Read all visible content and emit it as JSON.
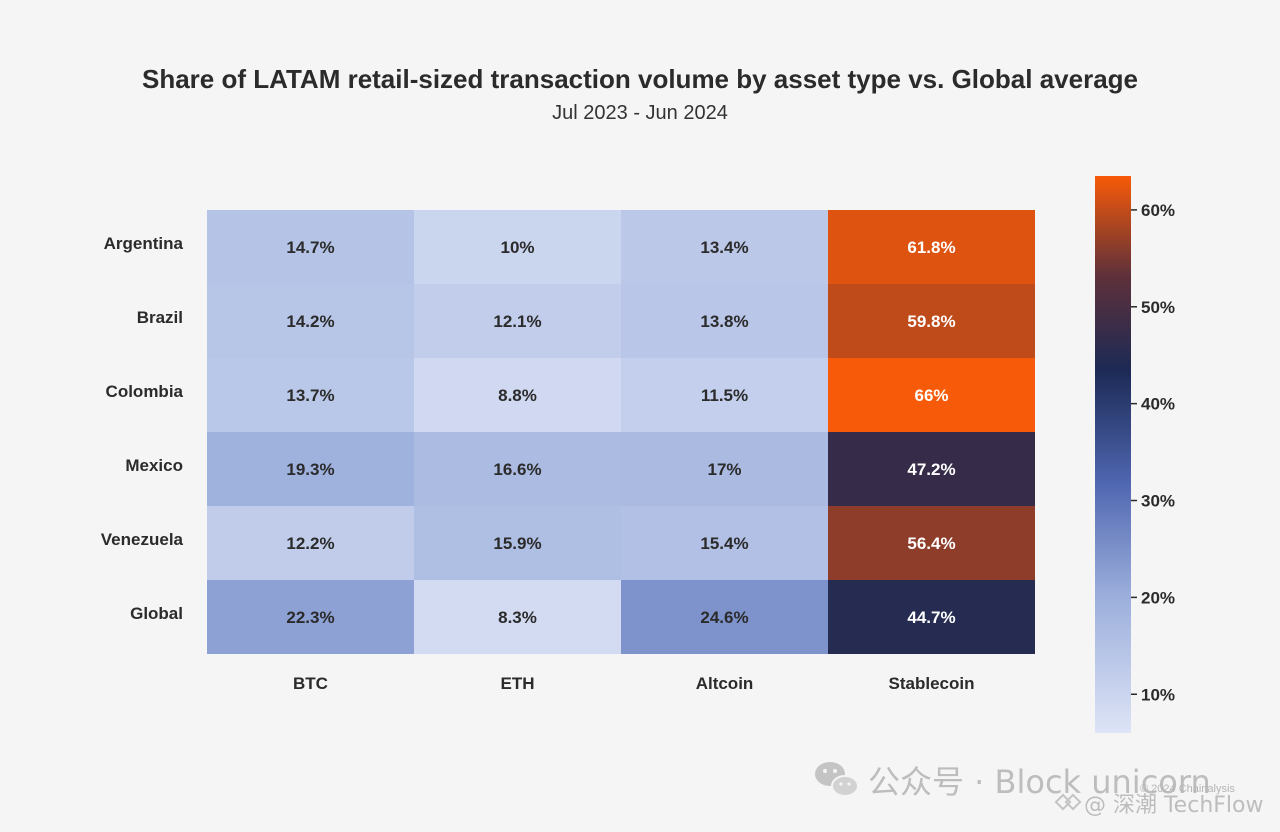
{
  "chart_data": {
    "type": "heatmap",
    "title": "Share of LATAM retail-sized transaction volume by asset type vs. Global average",
    "subtitle": "Jul 2023 - Jun 2024",
    "xlabel": "",
    "ylabel": "",
    "rows": [
      "Argentina",
      "Brazil",
      "Colombia",
      "Mexico",
      "Venezuela",
      "Global"
    ],
    "columns": [
      "BTC",
      "ETH",
      "Altcoin",
      "Stablecoin"
    ],
    "values": [
      [
        14.7,
        10,
        13.4,
        61.8
      ],
      [
        14.2,
        12.1,
        13.8,
        59.8
      ],
      [
        13.7,
        8.8,
        11.5,
        66
      ],
      [
        19.3,
        16.6,
        17,
        47.2
      ],
      [
        12.2,
        15.9,
        15.4,
        56.4
      ],
      [
        22.3,
        8.3,
        24.6,
        44.7
      ]
    ],
    "cell_labels": [
      [
        "14.7%",
        "10%",
        "13.4%",
        "61.8%"
      ],
      [
        "14.2%",
        "12.1%",
        "13.8%",
        "59.8%"
      ],
      [
        "13.7%",
        "8.8%",
        "11.5%",
        "66%"
      ],
      [
        "19.3%",
        "16.6%",
        "17%",
        "47.2%"
      ],
      [
        "12.2%",
        "15.9%",
        "15.4%",
        "56.4%"
      ],
      [
        "22.3%",
        "8.3%",
        "24.6%",
        "44.7%"
      ]
    ],
    "colorbar": {
      "range": [
        6,
        63.5
      ],
      "ticks": [
        10,
        20,
        30,
        40,
        50,
        60
      ],
      "tick_labels": [
        "10%",
        "20%",
        "30%",
        "40%",
        "50%",
        "60%"
      ],
      "colors": [
        "#dde4f6",
        "#9aaddb",
        "#4f66b0",
        "#1c2a55",
        "#5e303a",
        "#f75a08"
      ]
    },
    "grid": false,
    "legend": "colorbar-right"
  },
  "watermark": {
    "main_text": "公众号 · Block unicorn",
    "sub_text": "@ 深潮 TechFlow",
    "credit_text": "© 2024 Chainalysis",
    "icon": "wechat-icon"
  }
}
